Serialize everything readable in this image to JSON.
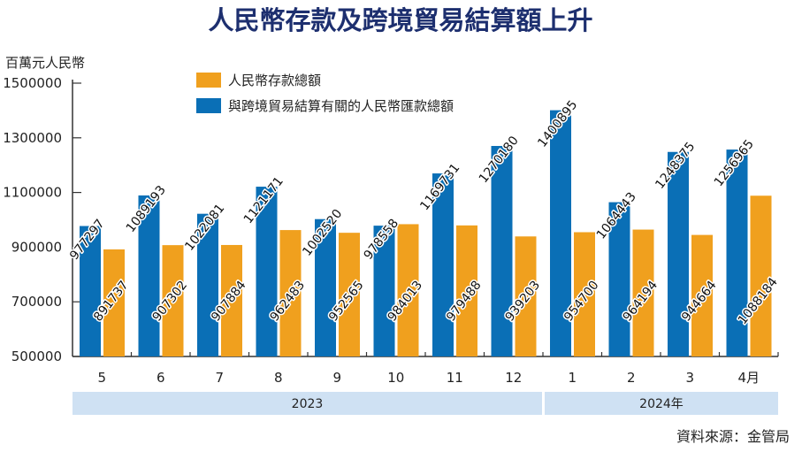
{
  "chart_data": {
    "type": "bar",
    "title": "人民幣存款及跨境貿易結算額上升",
    "ylabel": "百萬元人民幣",
    "ylim": [
      500000,
      1500000
    ],
    "yticks": [
      "1500000",
      "1300000",
      "1100000",
      "900000",
      "700000",
      "500000"
    ],
    "categories": [
      "5",
      "6",
      "7",
      "8",
      "9",
      "10",
      "11",
      "12",
      "1",
      "2",
      "3",
      "4月"
    ],
    "year_groups": [
      {
        "label": "2023",
        "span": 8
      },
      {
        "label": "2024年",
        "span": 4
      }
    ],
    "legend_position": "top",
    "grid": false,
    "series": [
      {
        "name": "與跨境貿易結算有關的人民幣匯款總額",
        "color": "#0a6fb6",
        "values": [
          977297,
          1089193,
          1022081,
          1121171,
          1002520,
          978558,
          1169731,
          1270180,
          1400895,
          1064443,
          1248375,
          1256965
        ]
      },
      {
        "name": "人民幣存款總額",
        "color": "#f0a01e",
        "values": [
          891737,
          907302,
          907884,
          962483,
          952565,
          984013,
          979488,
          939203,
          954700,
          964194,
          944664,
          1088184
        ]
      }
    ],
    "legend_order": [
      1,
      0
    ],
    "source": "資料來源：金管局",
    "year_band_color": "#cfe1f3"
  }
}
